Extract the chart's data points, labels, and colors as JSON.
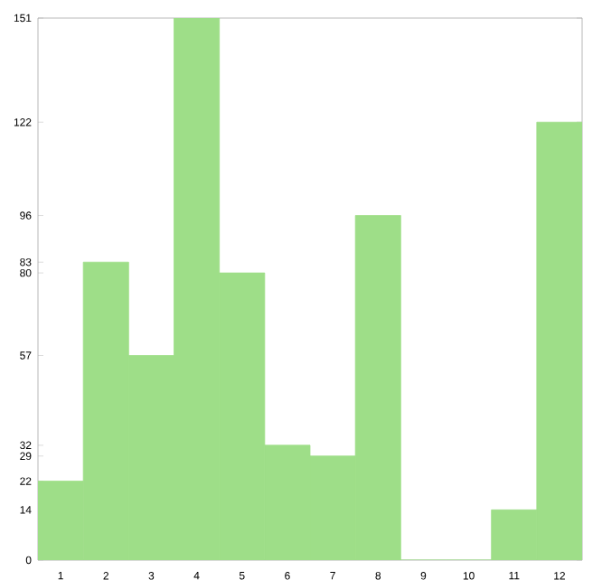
{
  "chart_data": {
    "type": "bar",
    "categories": [
      "1",
      "2",
      "3",
      "4",
      "5",
      "6",
      "7",
      "8",
      "9",
      "10",
      "11",
      "12"
    ],
    "values": [
      22,
      83,
      57,
      151,
      80,
      32,
      29,
      96,
      0,
      0,
      14,
      122
    ],
    "color": "#9ede88",
    "ylim": [
      0,
      151
    ],
    "yticks": [
      0,
      14,
      22,
      29,
      32,
      57,
      80,
      83,
      96,
      122,
      151
    ]
  }
}
